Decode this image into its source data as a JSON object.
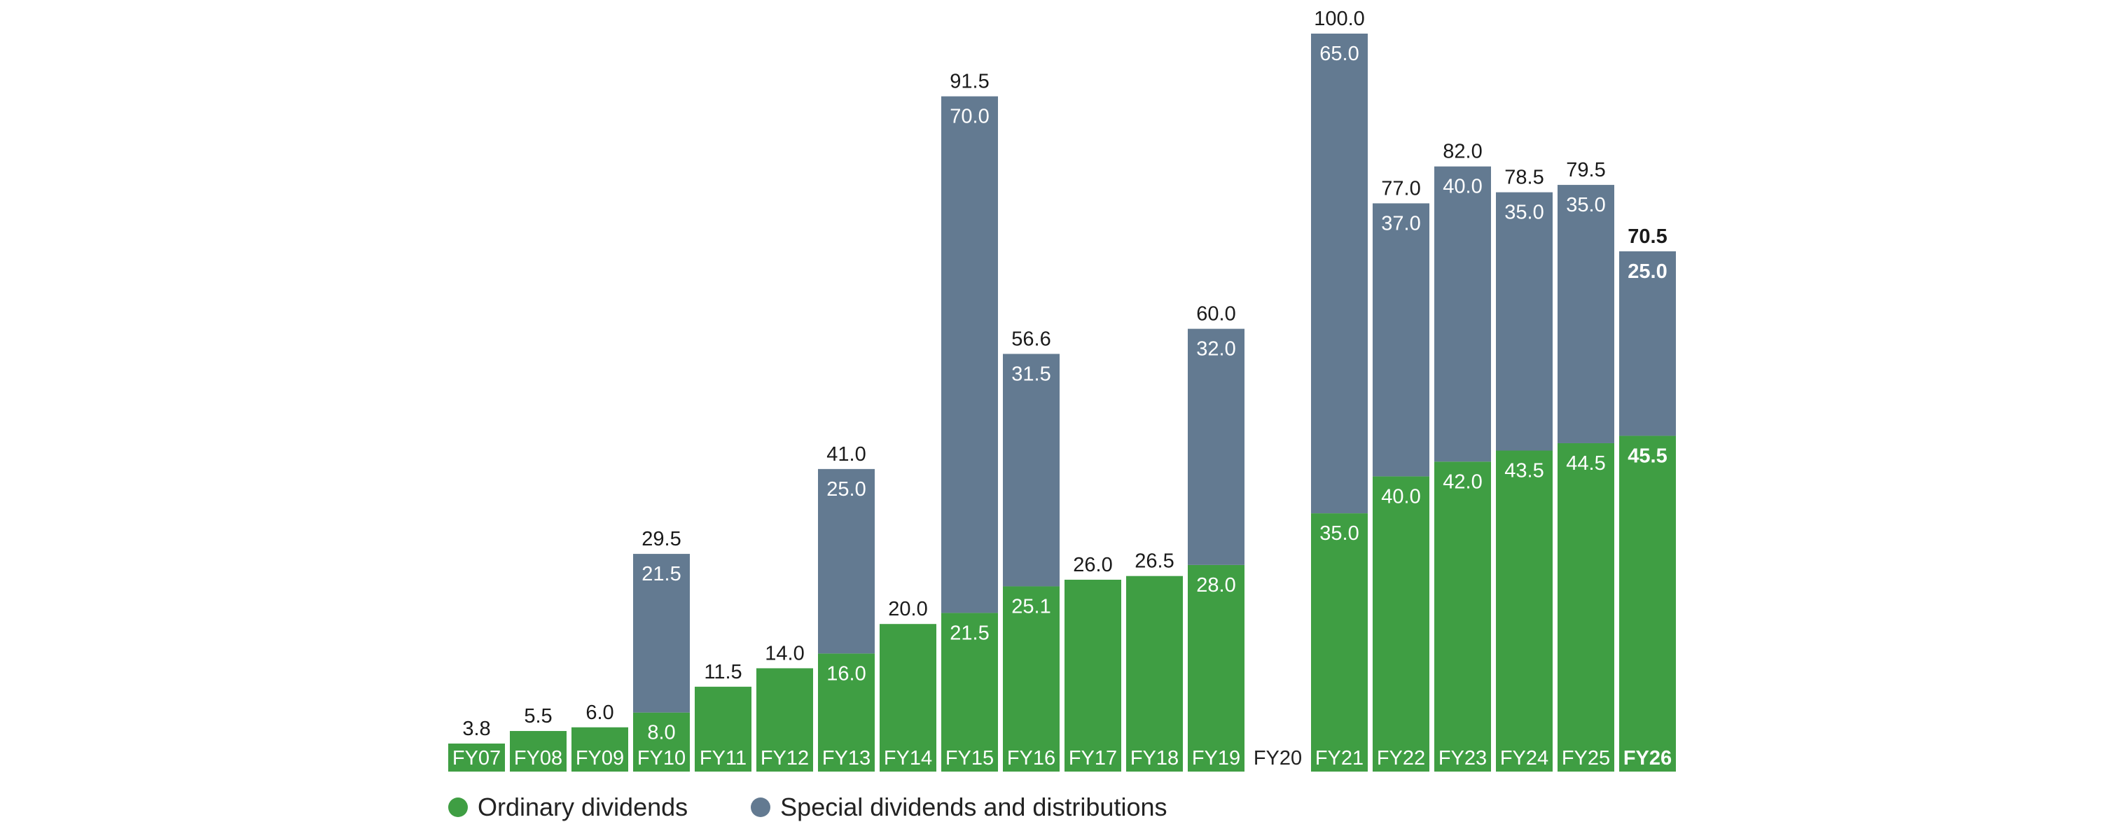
{
  "chart_data": {
    "type": "bar",
    "stacked": true,
    "categories": [
      "FY07",
      "FY08",
      "FY09",
      "FY10",
      "FY11",
      "FY12",
      "FY13",
      "FY14",
      "FY15",
      "FY16",
      "FY17",
      "FY18",
      "FY19",
      "FY20",
      "FY21",
      "FY22",
      "FY23",
      "FY24",
      "FY25",
      "FY26"
    ],
    "series": [
      {
        "name": "Ordinary dividends",
        "color": "#3f9e43",
        "values": [
          3.8,
          5.5,
          6.0,
          8.0,
          11.5,
          14.0,
          16.0,
          20.0,
          21.5,
          25.1,
          26.0,
          26.5,
          28.0,
          0,
          35.0,
          40.0,
          42.0,
          43.5,
          44.5,
          45.5
        ]
      },
      {
        "name": "Special dividends and distributions",
        "color": "#637a91",
        "values": [
          0,
          0,
          0,
          21.5,
          0,
          0,
          25.0,
          0,
          70.0,
          31.5,
          0,
          0,
          32.0,
          0,
          65.0,
          37.0,
          40.0,
          35.0,
          35.0,
          25.0
        ]
      }
    ],
    "segment_labels": {
      "ordinary": [
        "",
        "",
        "",
        "8.0",
        "",
        "",
        "16.0",
        "",
        "21.5",
        "25.1",
        "",
        "",
        "28.0",
        "",
        "35.0",
        "40.0",
        "42.0",
        "43.5",
        "44.5",
        "45.5"
      ],
      "special": [
        "",
        "",
        "",
        "21.5",
        "",
        "",
        "25.0",
        "",
        "70.0",
        "31.5",
        "",
        "",
        "32.0",
        "",
        "65.0",
        "37.0",
        "40.0",
        "35.0",
        "35.0",
        "25.0"
      ]
    },
    "total_labels": [
      "3.8",
      "5.5",
      "6.0",
      "29.5",
      "11.5",
      "14.0",
      "41.0",
      "20.0",
      "91.5",
      "56.6",
      "26.0",
      "26.5",
      "60.0",
      "",
      "100.0",
      "77.0",
      "82.0",
      "78.5",
      "79.5",
      "70.5"
    ],
    "highlight_category": "FY26",
    "ylim": [
      0,
      100
    ],
    "grid": false,
    "legend_position": "bottom-left",
    "title": "",
    "xlabel": "",
    "ylabel": ""
  }
}
